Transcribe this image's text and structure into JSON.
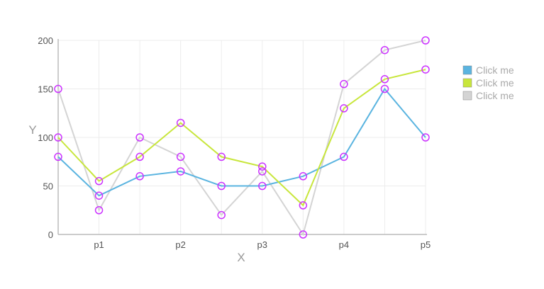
{
  "chart_data": {
    "type": "line",
    "x": [
      0,
      1,
      2,
      3,
      4,
      5,
      6,
      7,
      8,
      9
    ],
    "x_tick_labels": [
      "p1",
      "p2",
      "p3",
      "p4",
      "p5"
    ],
    "y_ticks": [
      0,
      50,
      100,
      150,
      200
    ],
    "xlabel": "X",
    "ylabel": "Y",
    "ylim": [
      0,
      200
    ],
    "grid": true,
    "legend_position": "right",
    "marker_color": "#cc33ff",
    "series": [
      {
        "name": "Click me",
        "color": "#5ab4e0",
        "values": [
          80,
          40,
          60,
          65,
          50,
          50,
          60,
          80,
          150,
          100
        ]
      },
      {
        "name": "Click me",
        "color": "#c8e63c",
        "values": [
          100,
          55,
          80,
          115,
          80,
          70,
          30,
          130,
          160,
          170
        ]
      },
      {
        "name": "Click me",
        "color": "#d4d4d4",
        "values": [
          150,
          25,
          100,
          80,
          20,
          65,
          0,
          155,
          190,
          200
        ]
      }
    ]
  }
}
